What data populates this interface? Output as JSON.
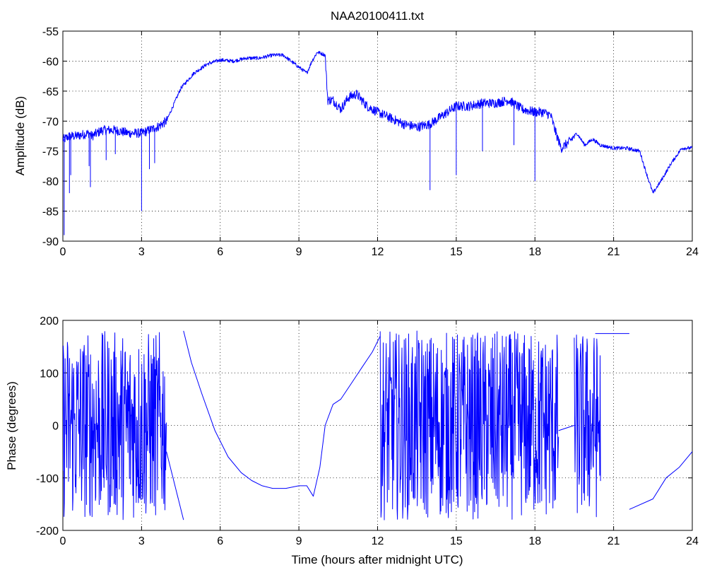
{
  "chart_data": [
    {
      "type": "line",
      "title": "NAA20100411.txt",
      "xlabel": "",
      "ylabel": "Amplitude (dB)",
      "xlim": [
        0,
        24
      ],
      "ylim": [
        -90,
        -55
      ],
      "grid": true,
      "xticks": [
        "0",
        "3",
        "6",
        "9",
        "12",
        "15",
        "18",
        "21",
        "24"
      ],
      "yticks": [
        "-55",
        "-60",
        "-65",
        "-70",
        "-75",
        "-80",
        "-85",
        "-90"
      ],
      "series": [
        {
          "color": "#0000ff",
          "x": [
            0,
            0.05,
            0.25,
            0.5,
            1.0,
            1.1,
            1.5,
            2.0,
            2.5,
            2.9,
            3.0,
            3.3,
            3.6,
            3.95,
            4.1,
            4.5,
            5.0,
            5.5,
            6.0,
            6.5,
            7.0,
            7.5,
            8.0,
            8.4,
            8.7,
            9.0,
            9.3,
            9.5,
            9.7,
            9.9,
            10.0,
            10.1,
            10.3,
            10.6,
            10.9,
            11.2,
            11.6,
            12.0,
            12.5,
            13.0,
            13.5,
            14.0,
            14.5,
            15.0,
            15.5,
            16.0,
            16.5,
            17.0,
            17.5,
            18.0,
            18.3,
            18.6,
            18.8,
            19.0,
            19.3,
            19.6,
            19.9,
            20.2,
            20.5,
            21.0,
            21.5,
            22.0,
            22.2,
            22.5,
            22.8,
            23.2,
            23.6,
            24.0
          ],
          "y": [
            -73,
            -73,
            -72.5,
            -72.5,
            -72,
            -72.5,
            -71.5,
            -71.5,
            -72,
            -72,
            -72,
            -71.5,
            -71,
            -70,
            -68.5,
            -64.5,
            -62,
            -60.5,
            -59.8,
            -60,
            -59.5,
            -59.5,
            -59,
            -59,
            -60,
            -61,
            -62,
            -60,
            -58.5,
            -58.8,
            -59,
            -66.5,
            -66.5,
            -68,
            -66,
            -65.5,
            -67.5,
            -68.5,
            -69.5,
            -70.5,
            -71,
            -70.5,
            -69,
            -67.5,
            -67.5,
            -67,
            -67,
            -66.5,
            -68,
            -68.5,
            -68.5,
            -69,
            -72,
            -74.5,
            -73.5,
            -72,
            -74,
            -73,
            -74,
            -74.5,
            -74.5,
            -75,
            -78,
            -82,
            -80,
            -77,
            -74.5,
            -74.5
          ],
          "spikes": [
            {
              "x": 0.05,
              "y": -89
            },
            {
              "x": 0.25,
              "y": -82
            },
            {
              "x": 0.3,
              "y": -79
            },
            {
              "x": 1.0,
              "y": -77.5
            },
            {
              "x": 1.05,
              "y": -81
            },
            {
              "x": 1.65,
              "y": -76.5
            },
            {
              "x": 2.0,
              "y": -75.5
            },
            {
              "x": 3.0,
              "y": -85
            },
            {
              "x": 3.3,
              "y": -78
            },
            {
              "x": 3.5,
              "y": -77
            },
            {
              "x": 14.0,
              "y": -81.5
            },
            {
              "x": 15.0,
              "y": -79
            },
            {
              "x": 16.0,
              "y": -75
            },
            {
              "x": 17.2,
              "y": -74
            },
            {
              "x": 18.0,
              "y": -80
            }
          ]
        }
      ]
    },
    {
      "type": "line",
      "title": "",
      "xlabel": "Time (hours after midnight UTC)",
      "ylabel": "Phase (degrees)",
      "xlim": [
        0,
        24
      ],
      "ylim": [
        -200,
        200
      ],
      "grid": true,
      "xticks": [
        "0",
        "3",
        "6",
        "9",
        "12",
        "15",
        "18",
        "21",
        "24"
      ],
      "yticks": [
        "200",
        "100",
        "0",
        "-100",
        "-200"
      ],
      "series": [
        {
          "color": "#0000ff",
          "x": [
            4.6,
            4.9,
            5.3,
            5.8,
            6.3,
            6.8,
            7.2,
            7.6,
            8.0,
            8.5,
            9.0,
            9.3,
            9.55,
            9.8,
            10.0,
            10.3,
            10.6,
            11.0,
            11.4,
            11.8,
            12.1
          ],
          "y": [
            180,
            120,
            60,
            -10,
            -60,
            -90,
            -105,
            -115,
            -120,
            -120,
            -115,
            -115,
            -135,
            -80,
            0,
            40,
            50,
            80,
            110,
            140,
            170
          ],
          "wrap_segments": [
            {
              "x": [
                0,
                3.95
              ],
              "ylim": [
                -180,
                180
              ]
            },
            {
              "x": [
                12.1,
                18.9
              ],
              "ylim": [
                -180,
                180
              ]
            },
            {
              "x": [
                19.5,
                20.5
              ],
              "ylim": [
                -180,
                180
              ]
            }
          ],
          "lines": [
            {
              "x": [
                3.95,
                4.6
              ],
              "y": [
                -50,
                -180
              ]
            },
            {
              "x": [
                18.9,
                19.5
              ],
              "y": [
                -10,
                0
              ]
            },
            {
              "x": [
                20.3,
                21.6
              ],
              "y": [
                175,
                175
              ]
            },
            {
              "x": [
                21.6,
                22.5,
                23.0,
                23.5,
                24.0
              ],
              "y": [
                -160,
                -140,
                -100,
                -80,
                -50
              ]
            }
          ]
        }
      ]
    }
  ]
}
